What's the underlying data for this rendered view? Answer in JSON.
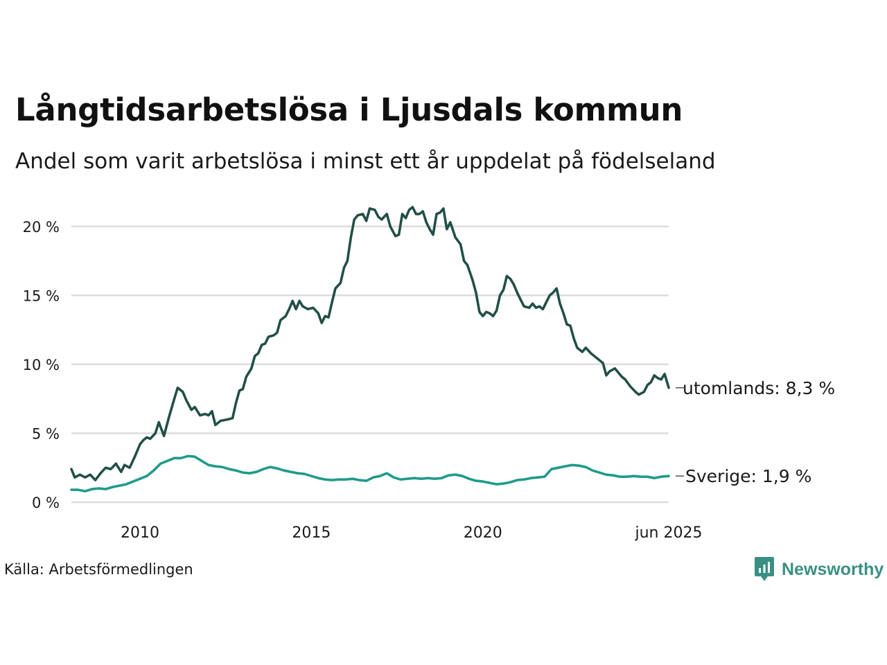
{
  "chart_data": {
    "type": "line",
    "title": "Långtidsarbetslösa i Ljusdals kommun",
    "subtitle": "Andel som varit arbetslösa i minst ett år uppdelat på födelseland",
    "source": "Källa: Arbetsförmedlingen",
    "brand": "Newsworthy",
    "ylim": [
      0,
      21.5
    ],
    "xlim": [
      2008.0,
      2025.42
    ],
    "y_ticks": [
      0,
      5,
      10,
      15,
      20
    ],
    "y_tick_labels": [
      "0 %",
      "5 %",
      "10 %",
      "15 %",
      "20 %"
    ],
    "x_ticks": [
      2010,
      2015,
      2020,
      2025.42
    ],
    "x_tick_labels": [
      "2010",
      "2015",
      "2020",
      "jun 2025"
    ],
    "grid": true,
    "series": [
      {
        "name": "utomlands",
        "end_label": "utomlands: 8,3 %",
        "color": "#224f47",
        "points": [
          [
            2008.0,
            2.4
          ],
          [
            2008.1,
            1.8
          ],
          [
            2008.25,
            2.0
          ],
          [
            2008.4,
            1.8
          ],
          [
            2008.55,
            2.0
          ],
          [
            2008.7,
            1.6
          ],
          [
            2008.85,
            2.1
          ],
          [
            2009.0,
            2.5
          ],
          [
            2009.15,
            2.4
          ],
          [
            2009.3,
            2.8
          ],
          [
            2009.45,
            2.2
          ],
          [
            2009.55,
            2.7
          ],
          [
            2009.7,
            2.5
          ],
          [
            2009.85,
            3.3
          ],
          [
            2010.0,
            4.2
          ],
          [
            2010.1,
            4.5
          ],
          [
            2010.2,
            4.7
          ],
          [
            2010.3,
            4.6
          ],
          [
            2010.45,
            5.0
          ],
          [
            2010.55,
            5.8
          ],
          [
            2010.7,
            4.8
          ],
          [
            2010.85,
            6.2
          ],
          [
            2011.0,
            7.5
          ],
          [
            2011.1,
            8.3
          ],
          [
            2011.25,
            8.0
          ],
          [
            2011.35,
            7.4
          ],
          [
            2011.5,
            6.7
          ],
          [
            2011.6,
            6.9
          ],
          [
            2011.75,
            6.3
          ],
          [
            2011.9,
            6.4
          ],
          [
            2012.0,
            6.3
          ],
          [
            2012.1,
            6.6
          ],
          [
            2012.2,
            5.6
          ],
          [
            2012.35,
            5.9
          ],
          [
            2012.55,
            6.0
          ],
          [
            2012.7,
            6.1
          ],
          [
            2012.8,
            7.2
          ],
          [
            2012.9,
            8.1
          ],
          [
            2013.0,
            8.2
          ],
          [
            2013.1,
            9.1
          ],
          [
            2013.25,
            9.7
          ],
          [
            2013.35,
            10.6
          ],
          [
            2013.45,
            10.8
          ],
          [
            2013.55,
            11.4
          ],
          [
            2013.65,
            11.5
          ],
          [
            2013.75,
            12.0
          ],
          [
            2013.9,
            12.1
          ],
          [
            2014.0,
            12.3
          ],
          [
            2014.1,
            13.2
          ],
          [
            2014.25,
            13.5
          ],
          [
            2014.35,
            14.0
          ],
          [
            2014.45,
            14.6
          ],
          [
            2014.55,
            14.0
          ],
          [
            2014.65,
            14.6
          ],
          [
            2014.75,
            14.2
          ],
          [
            2014.9,
            14.0
          ],
          [
            2015.05,
            14.1
          ],
          [
            2015.2,
            13.7
          ],
          [
            2015.3,
            13.0
          ],
          [
            2015.4,
            13.5
          ],
          [
            2015.5,
            13.4
          ],
          [
            2015.6,
            14.5
          ],
          [
            2015.7,
            15.5
          ],
          [
            2015.85,
            15.9
          ],
          [
            2015.95,
            17.0
          ],
          [
            2016.05,
            17.5
          ],
          [
            2016.15,
            19.2
          ],
          [
            2016.25,
            20.5
          ],
          [
            2016.35,
            20.8
          ],
          [
            2016.5,
            20.9
          ],
          [
            2016.6,
            20.4
          ],
          [
            2016.7,
            21.3
          ],
          [
            2016.85,
            21.2
          ],
          [
            2016.95,
            20.7
          ],
          [
            2017.05,
            20.5
          ],
          [
            2017.2,
            20.9
          ],
          [
            2017.3,
            20.0
          ],
          [
            2017.45,
            19.3
          ],
          [
            2017.55,
            19.4
          ],
          [
            2017.65,
            20.9
          ],
          [
            2017.75,
            20.6
          ],
          [
            2017.85,
            21.2
          ],
          [
            2017.95,
            21.4
          ],
          [
            2018.05,
            20.9
          ],
          [
            2018.15,
            20.9
          ],
          [
            2018.25,
            21.1
          ],
          [
            2018.35,
            20.3
          ],
          [
            2018.45,
            19.8
          ],
          [
            2018.55,
            19.4
          ],
          [
            2018.65,
            20.9
          ],
          [
            2018.75,
            21.0
          ],
          [
            2018.85,
            21.3
          ],
          [
            2018.95,
            19.8
          ],
          [
            2019.05,
            20.3
          ],
          [
            2019.2,
            19.2
          ],
          [
            2019.35,
            18.7
          ],
          [
            2019.45,
            17.5
          ],
          [
            2019.55,
            17.2
          ],
          [
            2019.7,
            16.1
          ],
          [
            2019.8,
            15.2
          ],
          [
            2019.9,
            13.8
          ],
          [
            2020.0,
            13.5
          ],
          [
            2020.1,
            13.8
          ],
          [
            2020.2,
            13.7
          ],
          [
            2020.3,
            13.5
          ],
          [
            2020.4,
            13.9
          ],
          [
            2020.5,
            15.0
          ],
          [
            2020.6,
            15.4
          ],
          [
            2020.7,
            16.4
          ],
          [
            2020.8,
            16.2
          ],
          [
            2020.9,
            15.8
          ],
          [
            2021.0,
            15.2
          ],
          [
            2021.1,
            14.7
          ],
          [
            2021.2,
            14.2
          ],
          [
            2021.35,
            14.1
          ],
          [
            2021.45,
            14.4
          ],
          [
            2021.55,
            14.1
          ],
          [
            2021.65,
            14.2
          ],
          [
            2021.75,
            14.0
          ],
          [
            2021.85,
            14.5
          ],
          [
            2021.95,
            15.0
          ],
          [
            2022.05,
            15.2
          ],
          [
            2022.15,
            15.5
          ],
          [
            2022.25,
            14.4
          ],
          [
            2022.35,
            13.7
          ],
          [
            2022.45,
            12.9
          ],
          [
            2022.55,
            12.8
          ],
          [
            2022.65,
            11.9
          ],
          [
            2022.75,
            11.2
          ],
          [
            2022.9,
            10.9
          ],
          [
            2023.0,
            11.2
          ],
          [
            2023.15,
            10.8
          ],
          [
            2023.3,
            10.5
          ],
          [
            2023.4,
            10.3
          ],
          [
            2023.5,
            10.1
          ],
          [
            2023.6,
            9.2
          ],
          [
            2023.7,
            9.5
          ],
          [
            2023.85,
            9.7
          ],
          [
            2023.95,
            9.4
          ],
          [
            2024.05,
            9.1
          ],
          [
            2024.15,
            8.9
          ],
          [
            2024.3,
            8.4
          ],
          [
            2024.45,
            8.0
          ],
          [
            2024.55,
            7.8
          ],
          [
            2024.7,
            8.0
          ],
          [
            2024.8,
            8.5
          ],
          [
            2024.9,
            8.7
          ],
          [
            2025.0,
            9.2
          ],
          [
            2025.1,
            9.0
          ],
          [
            2025.2,
            8.9
          ],
          [
            2025.3,
            9.3
          ],
          [
            2025.42,
            8.3
          ]
        ]
      },
      {
        "name": "Sverige",
        "end_label": "Sverige: 1,9 %",
        "color": "#1f9b8a",
        "points": [
          [
            2008.0,
            0.9
          ],
          [
            2008.2,
            0.9
          ],
          [
            2008.4,
            0.8
          ],
          [
            2008.6,
            0.95
          ],
          [
            2008.8,
            1.0
          ],
          [
            2009.0,
            0.95
          ],
          [
            2009.2,
            1.1
          ],
          [
            2009.4,
            1.2
          ],
          [
            2009.6,
            1.3
          ],
          [
            2009.8,
            1.5
          ],
          [
            2010.0,
            1.7
          ],
          [
            2010.2,
            1.9
          ],
          [
            2010.4,
            2.3
          ],
          [
            2010.6,
            2.8
          ],
          [
            2010.8,
            3.0
          ],
          [
            2011.0,
            3.2
          ],
          [
            2011.2,
            3.2
          ],
          [
            2011.4,
            3.35
          ],
          [
            2011.6,
            3.3
          ],
          [
            2011.8,
            3.0
          ],
          [
            2012.0,
            2.7
          ],
          [
            2012.2,
            2.6
          ],
          [
            2012.4,
            2.55
          ],
          [
            2012.6,
            2.4
          ],
          [
            2012.8,
            2.3
          ],
          [
            2013.0,
            2.15
          ],
          [
            2013.2,
            2.1
          ],
          [
            2013.4,
            2.2
          ],
          [
            2013.6,
            2.4
          ],
          [
            2013.8,
            2.55
          ],
          [
            2014.0,
            2.45
          ],
          [
            2014.2,
            2.3
          ],
          [
            2014.4,
            2.2
          ],
          [
            2014.6,
            2.1
          ],
          [
            2014.8,
            2.05
          ],
          [
            2015.0,
            1.9
          ],
          [
            2015.2,
            1.75
          ],
          [
            2015.4,
            1.65
          ],
          [
            2015.6,
            1.6
          ],
          [
            2015.8,
            1.65
          ],
          [
            2016.0,
            1.65
          ],
          [
            2016.2,
            1.7
          ],
          [
            2016.4,
            1.6
          ],
          [
            2016.6,
            1.55
          ],
          [
            2016.8,
            1.8
          ],
          [
            2017.0,
            1.9
          ],
          [
            2017.2,
            2.1
          ],
          [
            2017.4,
            1.8
          ],
          [
            2017.6,
            1.65
          ],
          [
            2017.8,
            1.7
          ],
          [
            2018.0,
            1.75
          ],
          [
            2018.2,
            1.7
          ],
          [
            2018.4,
            1.75
          ],
          [
            2018.6,
            1.7
          ],
          [
            2018.8,
            1.75
          ],
          [
            2019.0,
            1.95
          ],
          [
            2019.2,
            2.0
          ],
          [
            2019.4,
            1.9
          ],
          [
            2019.6,
            1.7
          ],
          [
            2019.8,
            1.55
          ],
          [
            2020.0,
            1.5
          ],
          [
            2020.2,
            1.4
          ],
          [
            2020.4,
            1.3
          ],
          [
            2020.6,
            1.35
          ],
          [
            2020.8,
            1.45
          ],
          [
            2021.0,
            1.6
          ],
          [
            2021.2,
            1.65
          ],
          [
            2021.4,
            1.75
          ],
          [
            2021.6,
            1.8
          ],
          [
            2021.8,
            1.85
          ],
          [
            2022.0,
            2.4
          ],
          [
            2022.2,
            2.5
          ],
          [
            2022.4,
            2.6
          ],
          [
            2022.6,
            2.7
          ],
          [
            2022.8,
            2.65
          ],
          [
            2023.0,
            2.55
          ],
          [
            2023.2,
            2.3
          ],
          [
            2023.4,
            2.15
          ],
          [
            2023.6,
            2.0
          ],
          [
            2023.8,
            1.95
          ],
          [
            2024.0,
            1.85
          ],
          [
            2024.2,
            1.85
          ],
          [
            2024.4,
            1.9
          ],
          [
            2024.6,
            1.85
          ],
          [
            2024.8,
            1.85
          ],
          [
            2025.0,
            1.75
          ],
          [
            2025.2,
            1.85
          ],
          [
            2025.42,
            1.9
          ]
        ]
      }
    ]
  }
}
